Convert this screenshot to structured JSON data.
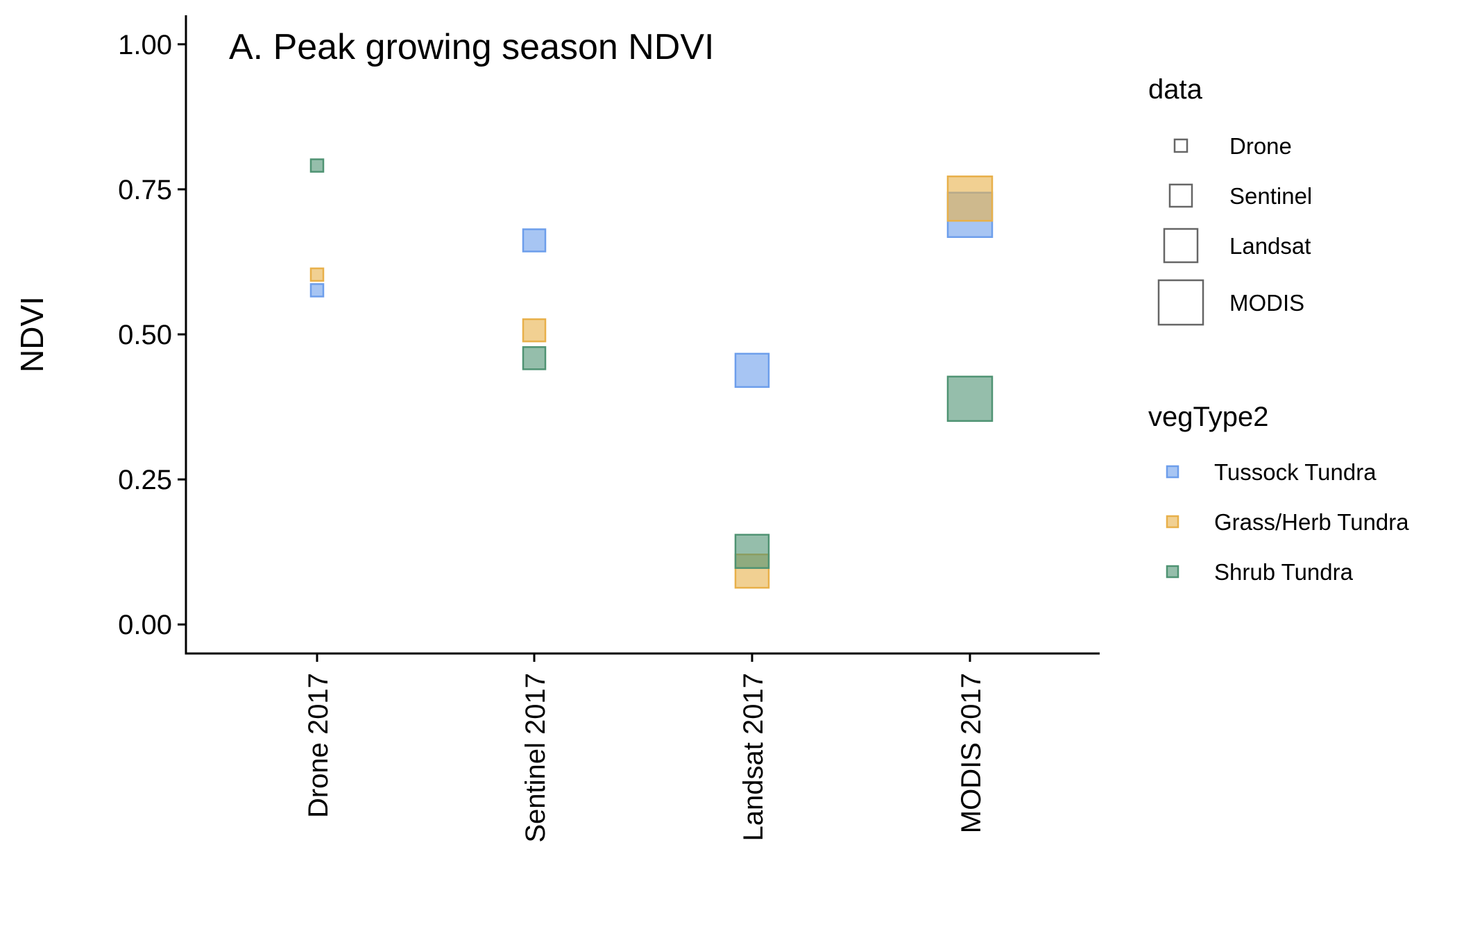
{
  "chart_data": {
    "type": "scatter",
    "title": "A. Peak growing season NDVI",
    "xlabel": "",
    "ylabel": "NDVI",
    "categories": [
      "Drone 2017",
      "Sentinel 2017",
      "Landsat 2017",
      "MODIS 2017"
    ],
    "ylim": [
      -0.05,
      1.05
    ],
    "yticks": [
      "0.00",
      "0.25",
      "0.50",
      "0.75",
      "1.00"
    ],
    "grid": false,
    "legend_position": "right",
    "size_legend": {
      "title": "data",
      "items": [
        {
          "label": "Drone",
          "category": "Drone 2017"
        },
        {
          "label": "Sentinel",
          "category": "Sentinel 2017"
        },
        {
          "label": "Landsat",
          "category": "Landsat 2017"
        },
        {
          "label": "MODIS",
          "category": "MODIS 2017"
        }
      ]
    },
    "color_legend_title": "vegType2",
    "series": [
      {
        "name": "Tussock Tundra",
        "color": "#6D9EEB",
        "values": [
          0.576,
          0.662,
          0.438,
          0.706
        ]
      },
      {
        "name": "Grass/Herb Tundra",
        "color": "#E8B04A",
        "values": [
          0.603,
          0.507,
          0.092,
          0.734
        ]
      },
      {
        "name": "Shrub Tundra",
        "color": "#4F9373",
        "values": [
          0.791,
          0.459,
          0.126,
          0.389
        ]
      }
    ]
  }
}
